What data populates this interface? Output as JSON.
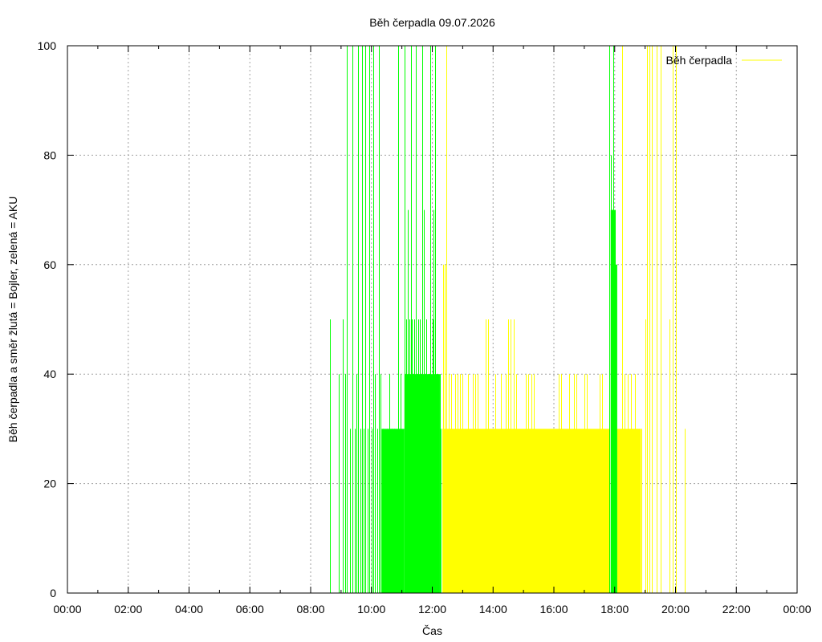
{
  "chart_data": {
    "type": "area",
    "title": "Běh čerpadla 09.07.2026",
    "xlabel": "Čas",
    "ylabel": "Běh čerpadla a směr žlutá = Bojler, zelená = AKU",
    "x_unit": "time of day (HH:MM)",
    "xlim": [
      "00:00",
      "24:00"
    ],
    "ylim": [
      0,
      100
    ],
    "x_ticks": [
      "00:00",
      "02:00",
      "04:00",
      "06:00",
      "08:00",
      "10:00",
      "12:00",
      "14:00",
      "16:00",
      "18:00",
      "20:00",
      "22:00",
      "00:00"
    ],
    "y_ticks": [
      0,
      20,
      40,
      60,
      80,
      100
    ],
    "grid": true,
    "legend": {
      "position": "top-right",
      "entries": [
        "Běh čerpadla"
      ]
    },
    "colors": {
      "yellow": "#ffff00",
      "green": "#00ff00",
      "grid": "#a0a0a0"
    },
    "series": [
      {
        "name": "Běh čerpadla",
        "color": "#ffff00",
        "style": "spikes",
        "values": [
          [
            "12:22",
            60
          ],
          [
            "12:25",
            60
          ],
          [
            "12:28",
            100
          ],
          [
            "12:32",
            40
          ],
          [
            "12:38",
            40
          ],
          [
            "12:45",
            40
          ],
          [
            "12:50",
            40
          ],
          [
            "12:55",
            40
          ],
          [
            "13:00",
            40
          ],
          [
            "13:10",
            40
          ],
          [
            "13:20",
            40
          ],
          [
            "13:25",
            40
          ],
          [
            "13:30",
            40
          ],
          [
            "13:45",
            50
          ],
          [
            "13:50",
            50
          ],
          [
            "14:05",
            40
          ],
          [
            "14:15",
            40
          ],
          [
            "14:25",
            40
          ],
          [
            "14:30",
            50
          ],
          [
            "14:35",
            50
          ],
          [
            "14:40",
            50
          ],
          [
            "14:45",
            40
          ],
          [
            "15:05",
            40
          ],
          [
            "15:10",
            40
          ],
          [
            "15:15",
            40
          ],
          [
            "15:20",
            40
          ],
          [
            "16:10",
            40
          ],
          [
            "16:15",
            40
          ],
          [
            "16:30",
            40
          ],
          [
            "16:40",
            40
          ],
          [
            "16:45",
            40
          ],
          [
            "17:00",
            40
          ],
          [
            "17:05",
            40
          ],
          [
            "17:30",
            40
          ],
          [
            "17:35",
            40
          ],
          [
            "18:15",
            100
          ],
          [
            "18:20",
            40
          ],
          [
            "18:25",
            40
          ],
          [
            "18:32",
            40
          ],
          [
            "18:40",
            40
          ],
          [
            "18:45",
            30
          ],
          [
            "18:48",
            30
          ],
          [
            "18:52",
            30
          ],
          [
            "19:00",
            50
          ],
          [
            "19:03",
            100
          ],
          [
            "19:08",
            100
          ],
          [
            "19:13",
            100
          ],
          [
            "19:22",
            100
          ],
          [
            "19:30",
            100
          ],
          [
            "19:48",
            50
          ],
          [
            "19:55",
            100
          ],
          [
            "20:00",
            100
          ],
          [
            "20:18",
            30
          ]
        ],
        "blocks": [
          {
            "from": "12:20",
            "to": "17:50",
            "value": 30
          },
          {
            "from": "18:05",
            "to": "18:52",
            "value": 30
          }
        ]
      },
      {
        "color": "#00ff00",
        "style": "spikes",
        "values": [
          [
            "08:38",
            50
          ],
          [
            "08:56",
            40
          ],
          [
            "09:03",
            50
          ],
          [
            "09:08",
            40
          ],
          [
            "09:12",
            100
          ],
          [
            "09:17",
            30
          ],
          [
            "09:22",
            100
          ],
          [
            "09:27",
            30
          ],
          [
            "09:30",
            40
          ],
          [
            "09:34",
            100
          ],
          [
            "09:38",
            30
          ],
          [
            "09:42",
            100
          ],
          [
            "09:45",
            30
          ],
          [
            "09:48",
            100
          ],
          [
            "09:52",
            30
          ],
          [
            "09:56",
            100
          ],
          [
            "10:00",
            30
          ],
          [
            "10:03",
            100
          ],
          [
            "10:07",
            40
          ],
          [
            "10:11",
            30
          ],
          [
            "10:14",
            100
          ],
          [
            "10:18",
            40
          ],
          [
            "10:22",
            30
          ],
          [
            "10:30",
            30
          ],
          [
            "10:35",
            40
          ],
          [
            "10:40",
            30
          ],
          [
            "10:45",
            30
          ],
          [
            "10:52",
            100
          ],
          [
            "10:58",
            40
          ],
          [
            "11:05",
            100
          ],
          [
            "11:08",
            50
          ],
          [
            "11:12",
            70
          ],
          [
            "11:15",
            50
          ],
          [
            "11:18",
            100
          ],
          [
            "11:20",
            50
          ],
          [
            "11:24",
            50
          ],
          [
            "11:28",
            100
          ],
          [
            "11:32",
            50
          ],
          [
            "11:36",
            50
          ],
          [
            "11:40",
            100
          ],
          [
            "11:44",
            70
          ],
          [
            "11:48",
            50
          ],
          [
            "11:52",
            40
          ],
          [
            "11:56",
            100
          ],
          [
            "12:00",
            50
          ],
          [
            "12:03",
            70
          ],
          [
            "12:06",
            100
          ],
          [
            "12:10",
            40
          ],
          [
            "12:15",
            40
          ],
          [
            "17:50",
            100
          ],
          [
            "17:52",
            80
          ],
          [
            "17:55",
            70
          ],
          [
            "17:58",
            100
          ],
          [
            "18:00",
            60
          ],
          [
            "18:02",
            60
          ]
        ],
        "blocks": [
          {
            "from": "10:20",
            "to": "11:05",
            "value": 30
          },
          {
            "from": "11:05",
            "to": "11:25",
            "value": 40
          },
          {
            "from": "11:25",
            "to": "12:15",
            "value": 40
          },
          {
            "from": "12:15",
            "to": "12:18",
            "value": 30
          },
          {
            "from": "17:52",
            "to": "18:02",
            "value": 70
          },
          {
            "from": "18:02",
            "to": "18:05",
            "value": 60
          }
        ]
      }
    ]
  }
}
